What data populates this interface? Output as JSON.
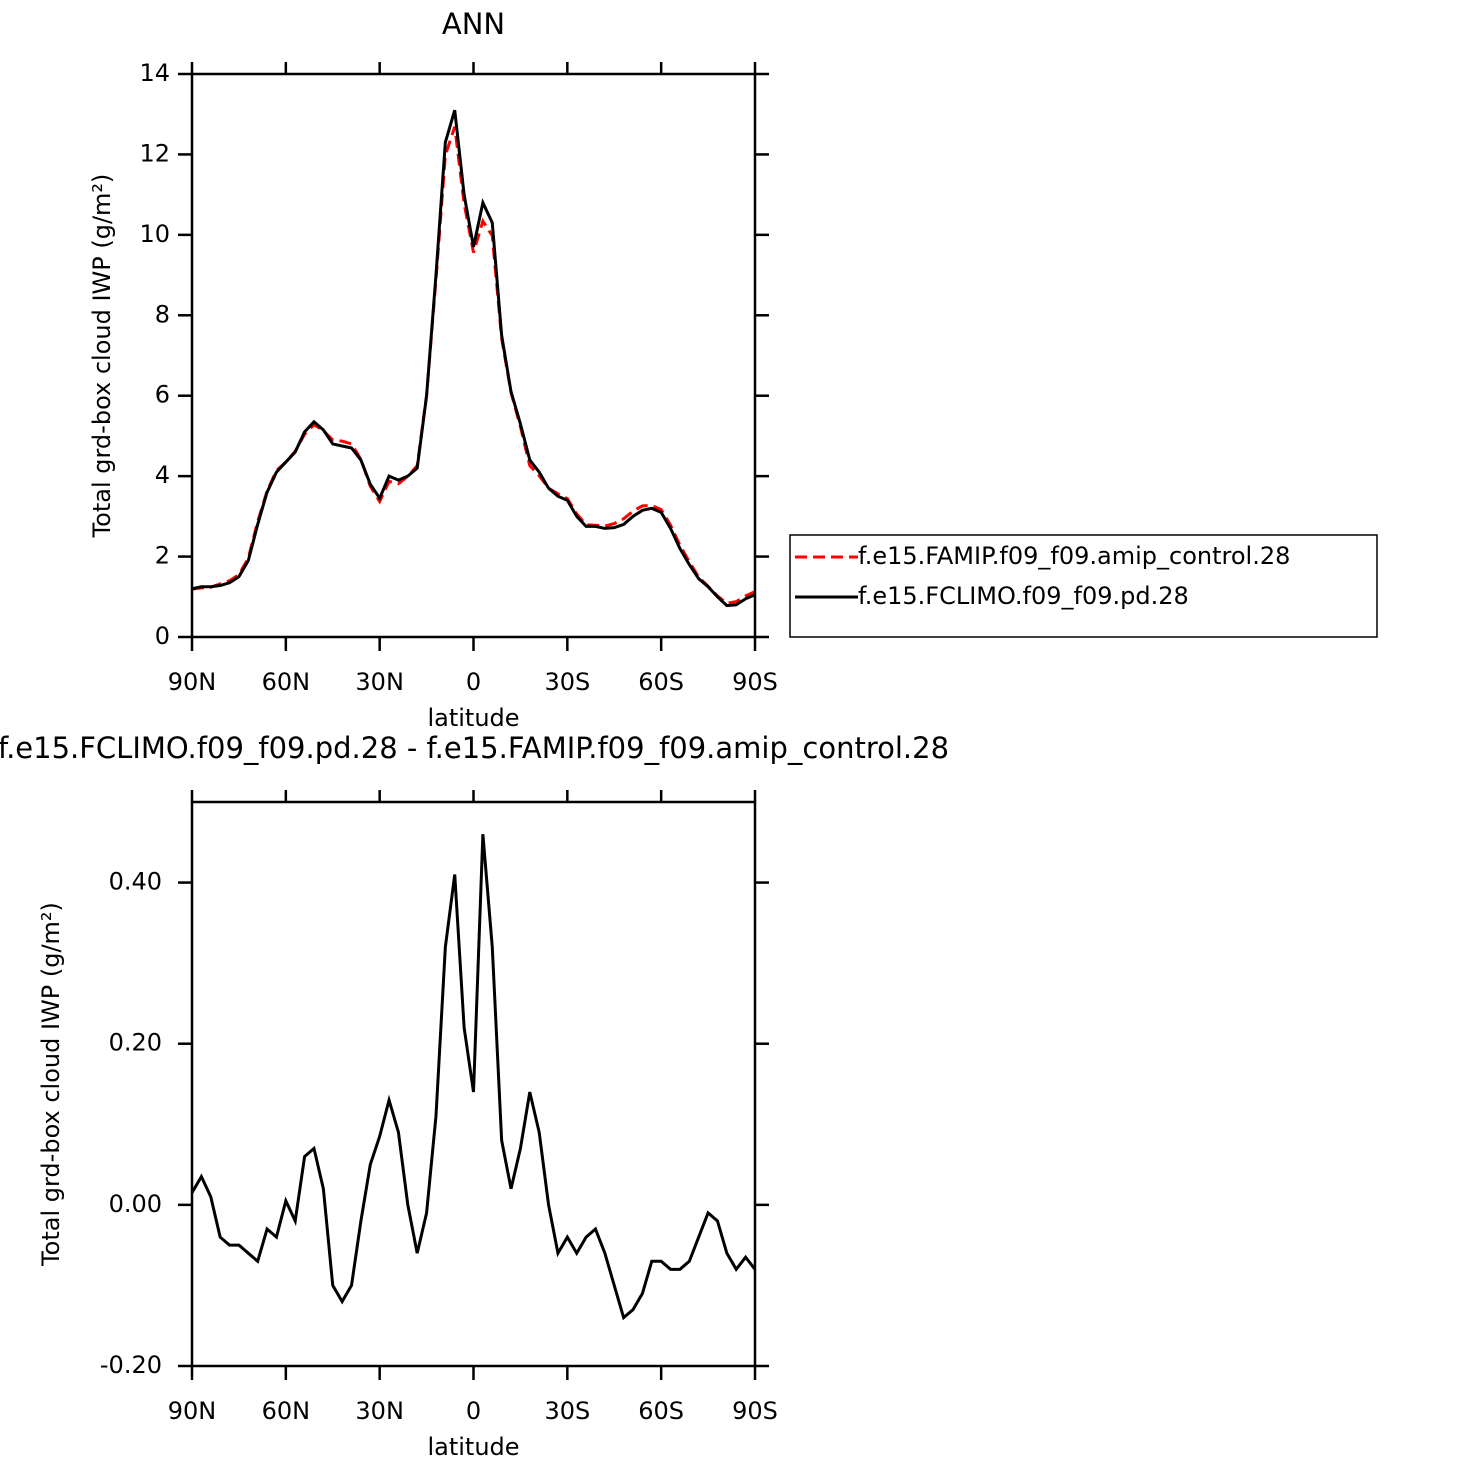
{
  "chart_data": [
    {
      "type": "line",
      "title": "ANN",
      "xlabel": "latitude",
      "ylabel": "Total grd-box cloud IWP (g/m²)",
      "x": [
        90,
        87,
        84,
        81,
        78,
        75,
        72,
        69,
        66,
        63,
        60,
        57,
        54,
        51,
        48,
        45,
        42,
        39,
        36,
        33,
        30,
        27,
        24,
        21,
        18,
        15,
        12,
        9,
        6,
        3,
        0,
        -3,
        -6,
        -9,
        -12,
        -15,
        -18,
        -21,
        -24,
        -27,
        -30,
        -33,
        -36,
        -39,
        -42,
        -45,
        -48,
        -51,
        -54,
        -57,
        -60,
        -63,
        -66,
        -69,
        -72,
        -75,
        -78,
        -81,
        -84,
        -87,
        -90
      ],
      "series": [
        {
          "name": "f.e15.FAMIP.f09_f09.amip_control.28",
          "color": "#ff0000",
          "dash": "dashed",
          "values": [
            1.19,
            1.22,
            1.24,
            1.32,
            1.4,
            1.55,
            1.96,
            2.87,
            3.63,
            4.14,
            4.35,
            4.62,
            5.04,
            5.28,
            5.13,
            4.9,
            4.87,
            4.8,
            4.42,
            3.75,
            3.37,
            3.87,
            3.81,
            4.0,
            4.26,
            6.01,
            8.89,
            11.98,
            12.69,
            10.78,
            9.56,
            10.34,
            9.98,
            7.42,
            6.08,
            5.23,
            4.26,
            4.01,
            3.7,
            3.56,
            3.44,
            3.06,
            2.79,
            2.78,
            2.76,
            2.82,
            2.94,
            3.13,
            3.26,
            3.27,
            3.17,
            2.78,
            2.28,
            1.87,
            1.49,
            1.26,
            1.02,
            0.84,
            0.88,
            1.02,
            1.13
          ]
        },
        {
          "name": "f.e15.FCLIMO.f09_f09.pd.28",
          "color": "#000000",
          "dash": "solid",
          "values": [
            1.2,
            1.25,
            1.25,
            1.28,
            1.35,
            1.5,
            1.9,
            2.8,
            3.6,
            4.1,
            4.35,
            4.6,
            5.1,
            5.35,
            5.15,
            4.8,
            4.75,
            4.7,
            4.4,
            3.8,
            3.45,
            4.0,
            3.9,
            4.0,
            4.2,
            6.0,
            9.0,
            12.3,
            13.1,
            11.0,
            9.7,
            10.8,
            10.3,
            7.5,
            6.1,
            5.3,
            4.4,
            4.1,
            3.7,
            3.5,
            3.4,
            3.0,
            2.75,
            2.75,
            2.7,
            2.72,
            2.8,
            3.0,
            3.15,
            3.2,
            3.1,
            2.7,
            2.2,
            1.8,
            1.45,
            1.25,
            1.0,
            0.78,
            0.8,
            0.95,
            1.05
          ]
        }
      ],
      "xlim": [
        90,
        -90
      ],
      "xticks": [
        {
          "value": 90,
          "label": "90N"
        },
        {
          "value": 60,
          "label": "60N"
        },
        {
          "value": 30,
          "label": "30N"
        },
        0,
        {
          "value": -30,
          "label": "30S"
        },
        {
          "value": -60,
          "label": "60S"
        },
        {
          "value": -90,
          "label": "90S"
        }
      ],
      "ylim": [
        0,
        14
      ],
      "yticks": [
        0,
        2,
        4,
        6,
        8,
        10,
        12,
        14
      ],
      "legend": "outside-right",
      "grid": false
    },
    {
      "type": "line",
      "title": "f.e15.FCLIMO.f09_f09.pd.28 - f.e15.FAMIP.f09_f09.amip_control.28",
      "xlabel": "latitude",
      "ylabel": "Total grd-box cloud IWP (g/m²)",
      "x": [
        90,
        87,
        84,
        81,
        78,
        75,
        72,
        69,
        66,
        63,
        60,
        57,
        54,
        51,
        48,
        45,
        42,
        39,
        36,
        33,
        30,
        27,
        24,
        21,
        18,
        15,
        12,
        9,
        6,
        3,
        0,
        -3,
        -6,
        -9,
        -12,
        -15,
        -18,
        -21,
        -24,
        -27,
        -30,
        -33,
        -36,
        -39,
        -42,
        -45,
        -48,
        -51,
        -54,
        -57,
        -60,
        -63,
        -66,
        -69,
        -72,
        -75,
        -78,
        -81,
        -84,
        -87,
        -90
      ],
      "color": "#000000",
      "values": [
        0.015,
        0.035,
        0.01,
        -0.04,
        -0.05,
        -0.05,
        -0.06,
        -0.07,
        -0.03,
        -0.04,
        0.005,
        -0.02,
        0.06,
        0.07,
        0.02,
        -0.1,
        -0.12,
        -0.1,
        -0.02,
        0.05,
        0.085,
        0.13,
        0.09,
        0.0,
        -0.06,
        -0.01,
        0.11,
        0.32,
        0.41,
        0.22,
        0.14,
        0.46,
        0.32,
        0.08,
        0.02,
        0.07,
        0.14,
        0.09,
        0.0,
        -0.06,
        -0.04,
        -0.06,
        -0.04,
        -0.03,
        -0.06,
        -0.1,
        -0.14,
        -0.13,
        -0.11,
        -0.07,
        -0.07,
        -0.08,
        -0.08,
        -0.07,
        -0.04,
        -0.01,
        -0.02,
        -0.06,
        -0.08,
        -0.065,
        -0.08
      ],
      "xlim": [
        90,
        -90
      ],
      "xticks": [
        {
          "value": 90,
          "label": "90N"
        },
        {
          "value": 60,
          "label": "60N"
        },
        {
          "value": 30,
          "label": "30N"
        },
        0,
        {
          "value": -30,
          "label": "30S"
        },
        {
          "value": -60,
          "label": "60S"
        },
        {
          "value": -90,
          "label": "90S"
        }
      ],
      "ylim": [
        -0.2,
        0.5
      ],
      "yticks": [
        {
          "value": -0.2,
          "label": "-0.20"
        },
        {
          "value": 0,
          "label": "0.00"
        },
        {
          "value": 0.2,
          "label": "0.20"
        },
        {
          "value": 0.4,
          "label": "0.40"
        }
      ],
      "grid": false
    }
  ]
}
